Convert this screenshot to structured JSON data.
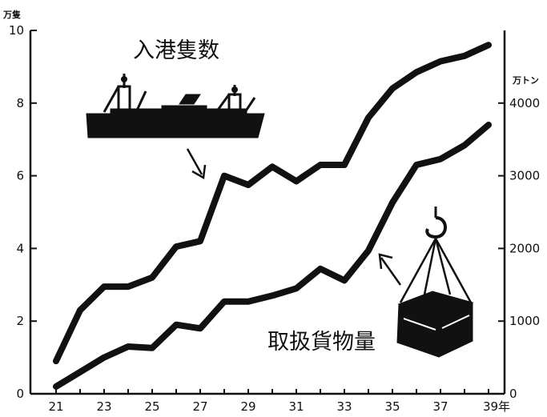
{
  "chart_data": {
    "type": "line",
    "x": [
      21,
      22,
      23,
      24,
      25,
      26,
      27,
      28,
      29,
      30,
      31,
      32,
      33,
      34,
      35,
      36,
      37,
      38,
      39
    ],
    "x_tick_labels": [
      "21",
      "23",
      "25",
      "27",
      "29",
      "31",
      "33",
      "35",
      "37",
      "39年"
    ],
    "series": [
      {
        "name": "入港隻数",
        "axis": "left",
        "values": [
          0.9,
          2.3,
          2.95,
          2.95,
          3.2,
          4.05,
          4.2,
          6.0,
          5.75,
          6.25,
          5.85,
          6.3,
          6.3,
          7.6,
          8.4,
          8.85,
          9.15,
          9.3,
          9.6
        ]
      },
      {
        "name": "取扱貨物量",
        "axis": "right",
        "values": [
          100,
          300,
          500,
          650,
          630,
          950,
          900,
          1270,
          1270,
          1350,
          1450,
          1720,
          1560,
          1970,
          2630,
          3150,
          3230,
          3420,
          3700
        ]
      }
    ],
    "y_left": {
      "unit": "万隻",
      "ylim": [
        0,
        10
      ],
      "ticks": [
        "0",
        "2",
        "4",
        "6",
        "8",
        "10"
      ]
    },
    "y_right": {
      "unit": "万トン",
      "ylim": [
        0,
        5000
      ],
      "ticks": [
        "0",
        "1000",
        "2000",
        "3000",
        "4000"
      ]
    },
    "grid": false,
    "colors": {
      "line": "#111111",
      "background": "#ffffff"
    }
  }
}
